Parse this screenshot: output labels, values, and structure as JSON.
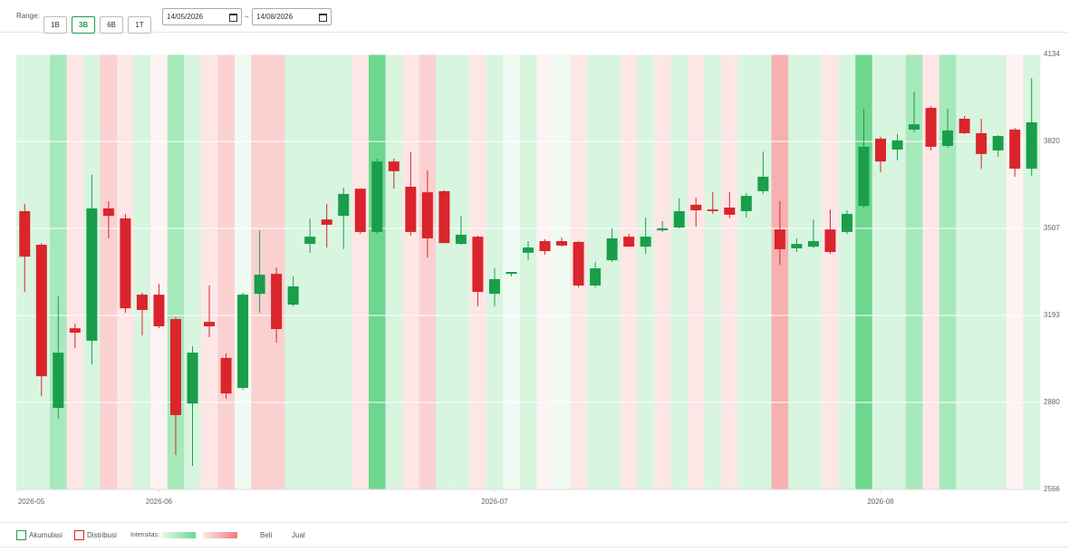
{
  "toolbar": {
    "range_label": "Range:",
    "buttons": [
      "1B",
      "3B",
      "6B",
      "1T"
    ],
    "active": "3B",
    "date_from": "14/05/2026",
    "separator": "→",
    "date_to": "14/08/2026"
  },
  "chart_data": {
    "type": "candlestick",
    "open": [
      3569,
      3448,
      2860,
      3147,
      3102,
      3579,
      3543,
      3268,
      3268,
      3180,
      2876,
      3170,
      3040,
      2932,
      3271,
      3343,
      3232,
      3451,
      3539,
      3552,
      3650,
      3494,
      3748,
      3657,
      3637,
      3641,
      3451,
      3477,
      3271,
      3343,
      3419,
      3461,
      3461,
      3458,
      3301,
      3392,
      3477,
      3441,
      3500,
      3510,
      3592,
      3575,
      3582,
      3569,
      3641,
      3503,
      3435,
      3441,
      3503,
      3494,
      3588,
      3830,
      3791,
      3863,
      3941,
      3804,
      3902,
      3850,
      3788,
      3863,
      3722
    ],
    "high": [
      3595,
      3454,
      3262,
      3164,
      3700,
      3605,
      3559,
      3275,
      3307,
      3187,
      3082,
      3301,
      3056,
      3275,
      3500,
      3366,
      3334,
      3543,
      3595,
      3654,
      3650,
      3758,
      3758,
      3781,
      3716,
      3644,
      3552,
      3481,
      3363,
      3350,
      3461,
      3468,
      3474,
      3461,
      3386,
      3507,
      3487,
      3546,
      3533,
      3615,
      3618,
      3637,
      3637,
      3634,
      3784,
      3605,
      3471,
      3539,
      3575,
      3572,
      3938,
      3837,
      3847,
      4000,
      3948,
      3938,
      3912,
      3902,
      3843,
      3869,
      4049
    ],
    "low": [
      3278,
      2902,
      2821,
      3075,
      3017,
      3471,
      3203,
      3121,
      3147,
      2690,
      2651,
      3115,
      2893,
      2925,
      3203,
      3095,
      3226,
      3419,
      3438,
      3432,
      3487,
      3487,
      3650,
      3481,
      3402,
      3454,
      3448,
      3226,
      3226,
      3334,
      3392,
      3412,
      3441,
      3294,
      3294,
      3386,
      3441,
      3415,
      3494,
      3507,
      3513,
      3559,
      3543,
      3546,
      3631,
      3376,
      3422,
      3435,
      3415,
      3487,
      3579,
      3709,
      3752,
      3853,
      3788,
      3797,
      3847,
      3722,
      3765,
      3693,
      3696
    ],
    "close": [
      3405,
      2974,
      3059,
      3131,
      3579,
      3552,
      3219,
      3213,
      3154,
      2834,
      3059,
      3154,
      2912,
      3268,
      3340,
      3144,
      3298,
      3477,
      3520,
      3631,
      3494,
      3748,
      3713,
      3494,
      3471,
      3454,
      3484,
      3278,
      3324,
      3350,
      3438,
      3425,
      3445,
      3301,
      3363,
      3471,
      3441,
      3477,
      3507,
      3569,
      3572,
      3569,
      3556,
      3624,
      3693,
      3432,
      3451,
      3461,
      3422,
      3559,
      3801,
      3748,
      3824,
      3882,
      3801,
      3860,
      3850,
      3775,
      3840,
      3722,
      3889
    ],
    "up_color": "#1a9e4a",
    "down_color": "#d9252b",
    "band_colors": [
      "#d8f5e0",
      "#d8f5e0",
      "#a6e9bb",
      "#fde6e6",
      "#d8f5e0",
      "#fbd0d0",
      "#fde6e6",
      "#d8f5e0",
      "#fef3f3",
      "#a6e9bb",
      "#d8f5e0",
      "#fde6e6",
      "#fbd0d0",
      "#effbf2",
      "#fbd0d0",
      "#fbd0d0",
      "#d8f5e0",
      "#d8f5e0",
      "#d8f5e0",
      "#d8f5e0",
      "#fde6e6",
      "#6fd68f",
      "#d8f5e0",
      "#fde6e6",
      "#fbd0d0",
      "#d8f5e0",
      "#d8f5e0",
      "#fde6e6",
      "#d8f5e0",
      "#effbf2",
      "#d8f5e0",
      "#fef3f3",
      "#effbf2",
      "#fde6e6",
      "#d8f5e0",
      "#d8f5e0",
      "#fde6e6",
      "#d8f5e0",
      "#fde6e6",
      "#d8f5e0",
      "#fde6e6",
      "#d8f5e0",
      "#fde6e6",
      "#d8f5e0",
      "#d8f5e0",
      "#f6b0b0",
      "#d8f5e0",
      "#d8f5e0",
      "#fde6e6",
      "#d8f5e0",
      "#6fd68f",
      "#d8f5e0",
      "#d8f5e0",
      "#a6e9bb",
      "#fde6e6",
      "#a6e9bb",
      "#d8f5e0",
      "#d8f5e0",
      "#d8f5e0",
      "#fef3f3",
      "#d8f5e0"
    ],
    "ylim": [
      2566,
      4134
    ],
    "yticks": [
      2566,
      2880,
      3193,
      3507,
      3820,
      4134
    ],
    "xticks": [
      {
        "value": -0.4,
        "label": "2026-05"
      },
      {
        "value": 8,
        "label": "2026-06"
      },
      {
        "value": 28,
        "label": "2026-07"
      },
      {
        "value": 51,
        "label": "2026-08"
      }
    ],
    "grid": true
  },
  "legend": {
    "accumulation": "Akumulasi",
    "distribution": "Distribusi",
    "intensity": "Intensitas:",
    "buy": "Beli",
    "sell": "Jual"
  }
}
